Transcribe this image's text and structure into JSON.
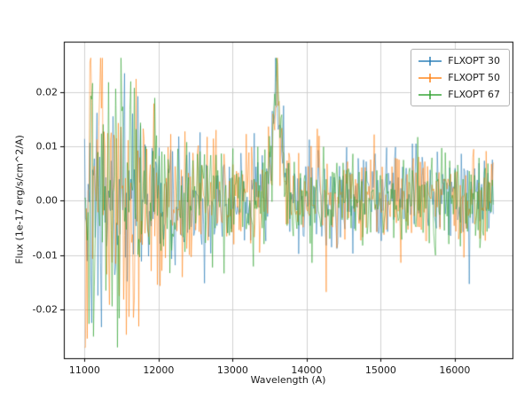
{
  "figure": {
    "background": "#ffffff"
  },
  "chart_data": {
    "type": "line",
    "title": "",
    "xlabel": "Wavelength (A)",
    "ylabel": "Flux (1e-17 erg/s/cm^2/A)",
    "xlim": [
      10720,
      16780
    ],
    "ylim": [
      -0.029,
      0.0293
    ],
    "xtick_values": [
      11000,
      12000,
      13000,
      14000,
      15000,
      16000
    ],
    "xtick_labels": [
      "11000",
      "12000",
      "13000",
      "14000",
      "15000",
      "16000"
    ],
    "ytick_values": [
      -0.02,
      -0.01,
      0,
      0.01,
      0.02
    ],
    "ytick_labels": [
      "-0.02",
      "-0.01",
      "0.00",
      "0.01",
      "0.02"
    ],
    "grid": true,
    "grid_color": "#d0d0d0",
    "axis_color": "#000000",
    "text_color": "#1a1a1a",
    "legend_position": "upper right",
    "series": [
      {
        "name": "FLXOPT 30",
        "color": "#1f77b4",
        "alpha": 0.55,
        "seed": 1137,
        "left_amp": 0.0085,
        "peak_height": 0.022
      },
      {
        "name": "FLXOPT 50",
        "color": "#ff7f0e",
        "alpha": 0.55,
        "seed": 2251,
        "left_amp": 0.013,
        "peak_height": 0.018
      },
      {
        "name": "FLXOPT 67",
        "color": "#2ca02c",
        "alpha": 0.55,
        "seed": 3319,
        "left_amp": 0.011,
        "peak_height": 0.021
      }
    ],
    "generation": {
      "x_start": 11000,
      "x_end": 16520,
      "step": 12,
      "noise_base": 0.0042,
      "left_tau": 900,
      "mean_offset": 0.0005,
      "peak_center": 13600,
      "peak_sigma": 55,
      "clip": [
        -0.027,
        0.0263
      ]
    }
  }
}
